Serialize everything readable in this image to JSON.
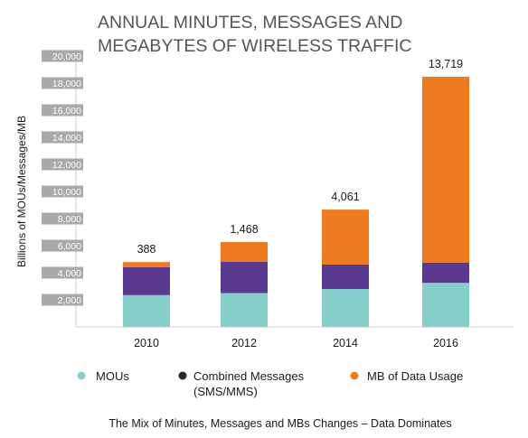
{
  "chart_data": {
    "type": "bar",
    "stacked": true,
    "title_lines": [
      "ANNUAL MINUTES, MESSAGES AND",
      "MEGABYTES OF WIRELESS TRAFFIC"
    ],
    "ylabel": "Billions of MOUs/Messages/MB",
    "xlabel": "",
    "ylim": [
      0,
      20000
    ],
    "y_ticks": [
      "20,000",
      "18,000",
      "16,000",
      "14,000",
      "12,000",
      "10,000",
      "8,000",
      "6,000",
      "4,000",
      "2,000"
    ],
    "y_tick_values": [
      20000,
      18000,
      16000,
      14000,
      12000,
      10000,
      8000,
      6000,
      4000,
      2000
    ],
    "categories": [
      "2010",
      "2012",
      "2014",
      "2016"
    ],
    "series": [
      {
        "name": "MOUs",
        "color": "#86cfcc",
        "values": [
          2350,
          2500,
          2800,
          3250
        ]
      },
      {
        "name": "Combined Messages (SMS/MMS)",
        "color": "#5a3a8e",
        "values": [
          2050,
          2300,
          1800,
          1500
        ]
      },
      {
        "name": "MB of Data Usage",
        "color": "#ee7a22",
        "values": [
          388,
          1468,
          4061,
          13719
        ]
      }
    ],
    "data_labels": [
      "388",
      "1,468",
      "4,061",
      "13,719"
    ],
    "legend_markers": [
      "#86cfcc",
      "#2a2435",
      "#ee7a22"
    ],
    "legend_position": "bottom",
    "grid": false,
    "footer": "The Mix of Minutes, Messages and MBs Changes – Data Dominates"
  }
}
